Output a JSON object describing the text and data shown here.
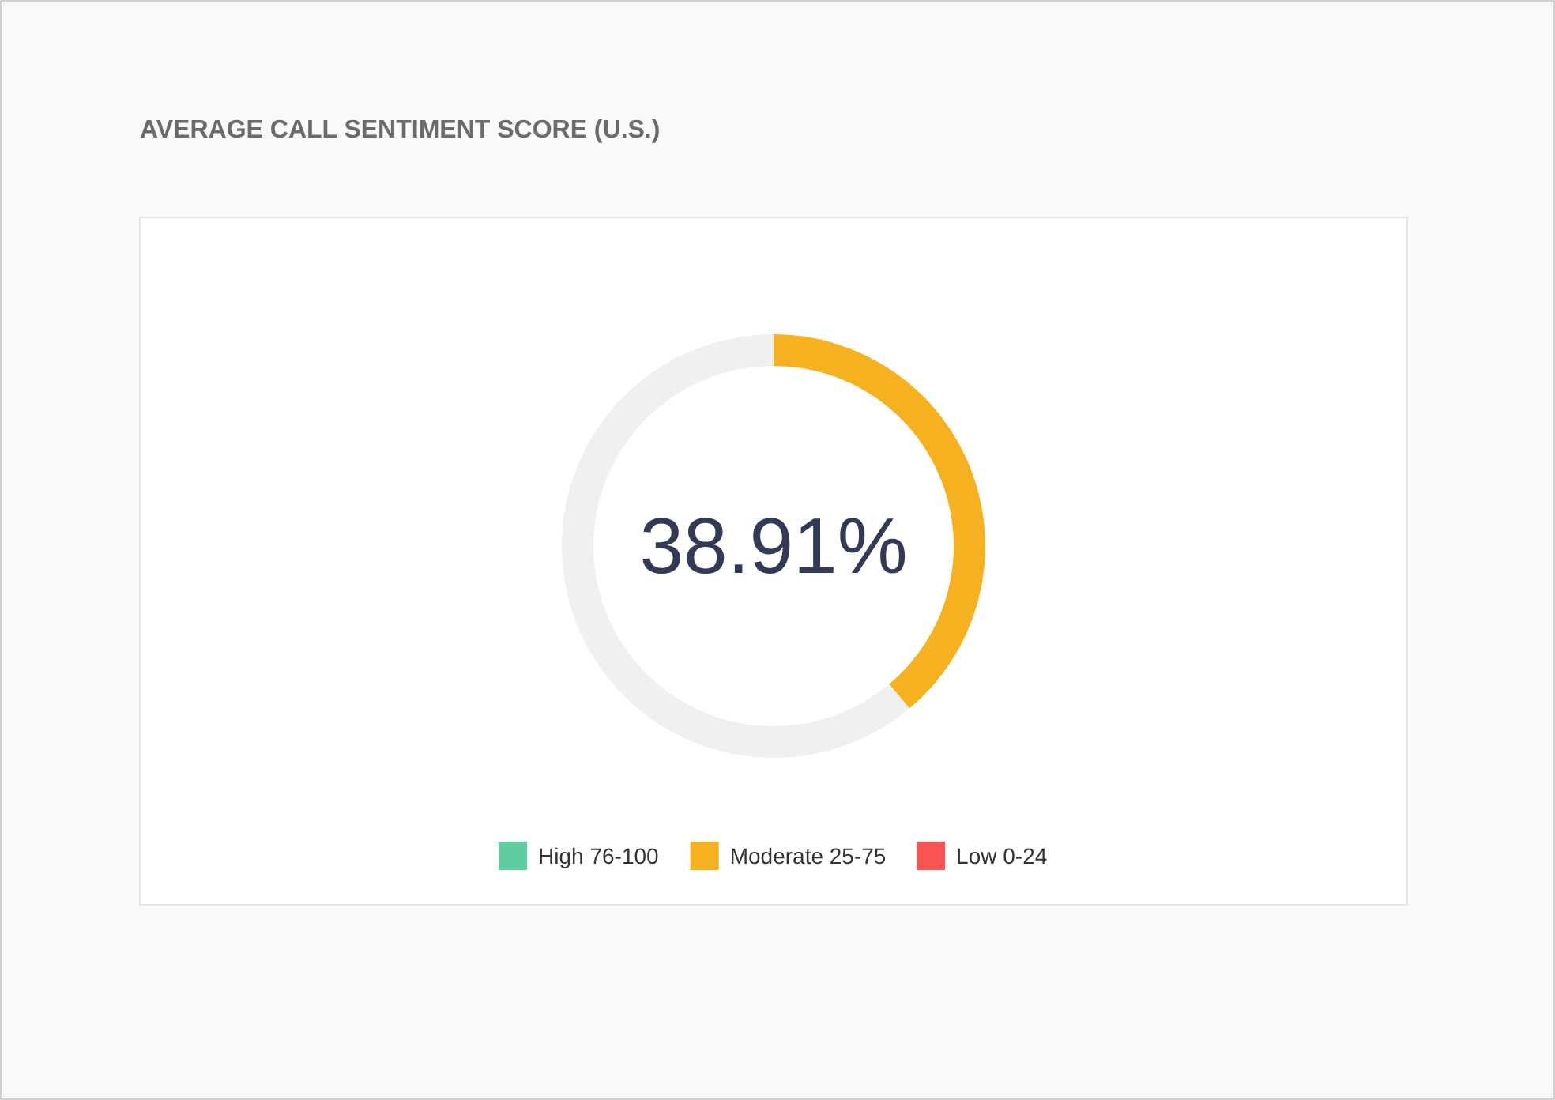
{
  "chart_data": {
    "type": "donut",
    "title": "AVERAGE CALL SENTIMENT SCORE (U.S.)",
    "categories": [
      "High 76-100",
      "Moderate 25-75",
      "Low 0-24",
      null
    ],
    "values": [
      0,
      38.91,
      0,
      61.09
    ],
    "colors": [
      "#5ecba1",
      "#f5b120",
      "#f95454",
      "#f0f0f0"
    ],
    "value_labels": [
      null,
      "38.91%",
      null,
      null
    ],
    "legend": "bottom"
  }
}
